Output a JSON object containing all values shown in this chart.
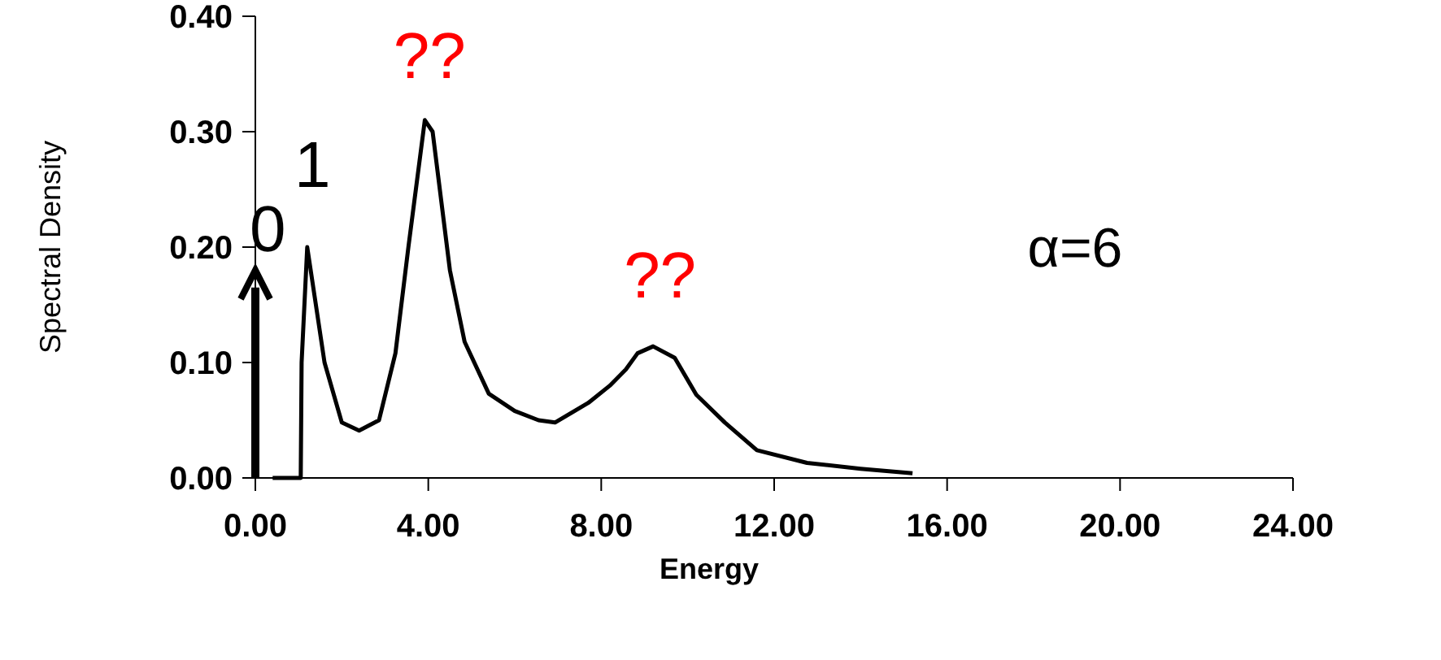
{
  "chart_data": {
    "type": "line",
    "xlabel": "Energy",
    "ylabel": "Spectral Density",
    "xlim": [
      0,
      24
    ],
    "ylim": [
      0,
      0.4
    ],
    "xticks": [
      {
        "value": 0,
        "label": "0.00"
      },
      {
        "value": 4,
        "label": "4.00"
      },
      {
        "value": 8,
        "label": "8.00"
      },
      {
        "value": 12,
        "label": "12.00"
      },
      {
        "value": 16,
        "label": "16.00"
      },
      {
        "value": 20,
        "label": "20.00"
      },
      {
        "value": 24,
        "label": "24.00"
      }
    ],
    "yticks": [
      {
        "value": 0,
        "label": "0.00"
      },
      {
        "value": 0.1,
        "label": "0.10"
      },
      {
        "value": 0.2,
        "label": "0.20"
      },
      {
        "value": 0.3,
        "label": "0.30"
      },
      {
        "value": 0.4,
        "label": "0.40"
      }
    ],
    "grid": false,
    "marker": "none",
    "line_style": "solid",
    "series": [
      {
        "color": "#000000",
        "x": [
          0.4,
          1.05,
          1.07,
          1.2,
          1.6,
          2.0,
          2.4,
          2.86,
          3.24,
          3.54,
          3.92,
          4.1,
          4.5,
          4.84,
          5.4,
          6.0,
          6.55,
          6.93,
          7.7,
          8.2,
          8.57,
          8.84,
          9.2,
          9.7,
          10.2,
          10.86,
          11.6,
          12.76,
          14.0,
          15.2
        ],
        "values": [
          0,
          0,
          0.1,
          0.2,
          0.1,
          0.048,
          0.041,
          0.05,
          0.108,
          0.2,
          0.31,
          0.3,
          0.18,
          0.118,
          0.073,
          0.058,
          0.05,
          0.048,
          0.065,
          0.08,
          0.094,
          0.108,
          0.114,
          0.104,
          0.072,
          0.048,
          0.024,
          0.013,
          0.008,
          0.004
        ]
      }
    ],
    "annotations": [
      "0",
      "1",
      "??",
      "??",
      "α=6"
    ]
  }
}
